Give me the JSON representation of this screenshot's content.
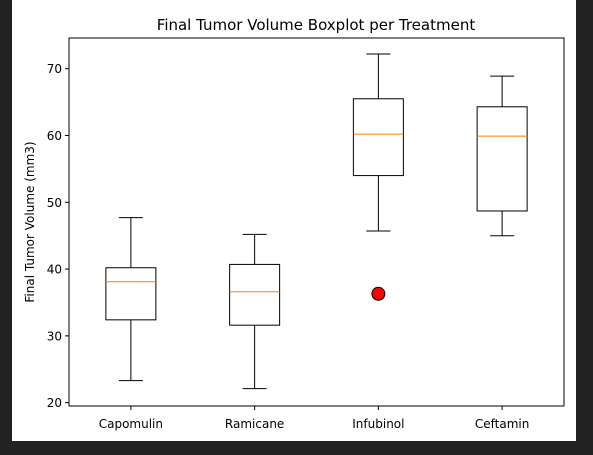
{
  "chart_data": {
    "type": "boxplot",
    "title": "Final Tumor Volume Boxplot per Treatment",
    "xlabel": "",
    "ylabel": "Final Tumor Volume (mm3)",
    "ylim": [
      19.5,
      74.6
    ],
    "yticks": [
      20,
      30,
      40,
      50,
      60,
      70
    ],
    "grid": false,
    "categories": [
      "Capomulin",
      "Ramicane",
      "Infubinol",
      "Ceftamin"
    ],
    "boxes": [
      {
        "whisker_low": 23.3,
        "q1": 32.4,
        "median": 38.1,
        "q3": 40.2,
        "whisker_high": 47.7,
        "outliers": []
      },
      {
        "whisker_low": 22.1,
        "q1": 31.6,
        "median": 36.6,
        "q3": 40.7,
        "whisker_high": 45.2,
        "outliers": []
      },
      {
        "whisker_low": 45.7,
        "q1": 54.0,
        "median": 60.2,
        "q3": 65.5,
        "whisker_high": 72.2,
        "outliers": [
          36.3
        ]
      },
      {
        "whisker_low": 45.0,
        "q1": 48.7,
        "median": 59.9,
        "q3": 64.3,
        "whisker_high": 68.9,
        "outliers": []
      }
    ],
    "colors": {
      "box": "#000000",
      "median": "#ff7f0e",
      "outlier_fill": "#ff0000",
      "outlier_edge": "#000000"
    }
  }
}
